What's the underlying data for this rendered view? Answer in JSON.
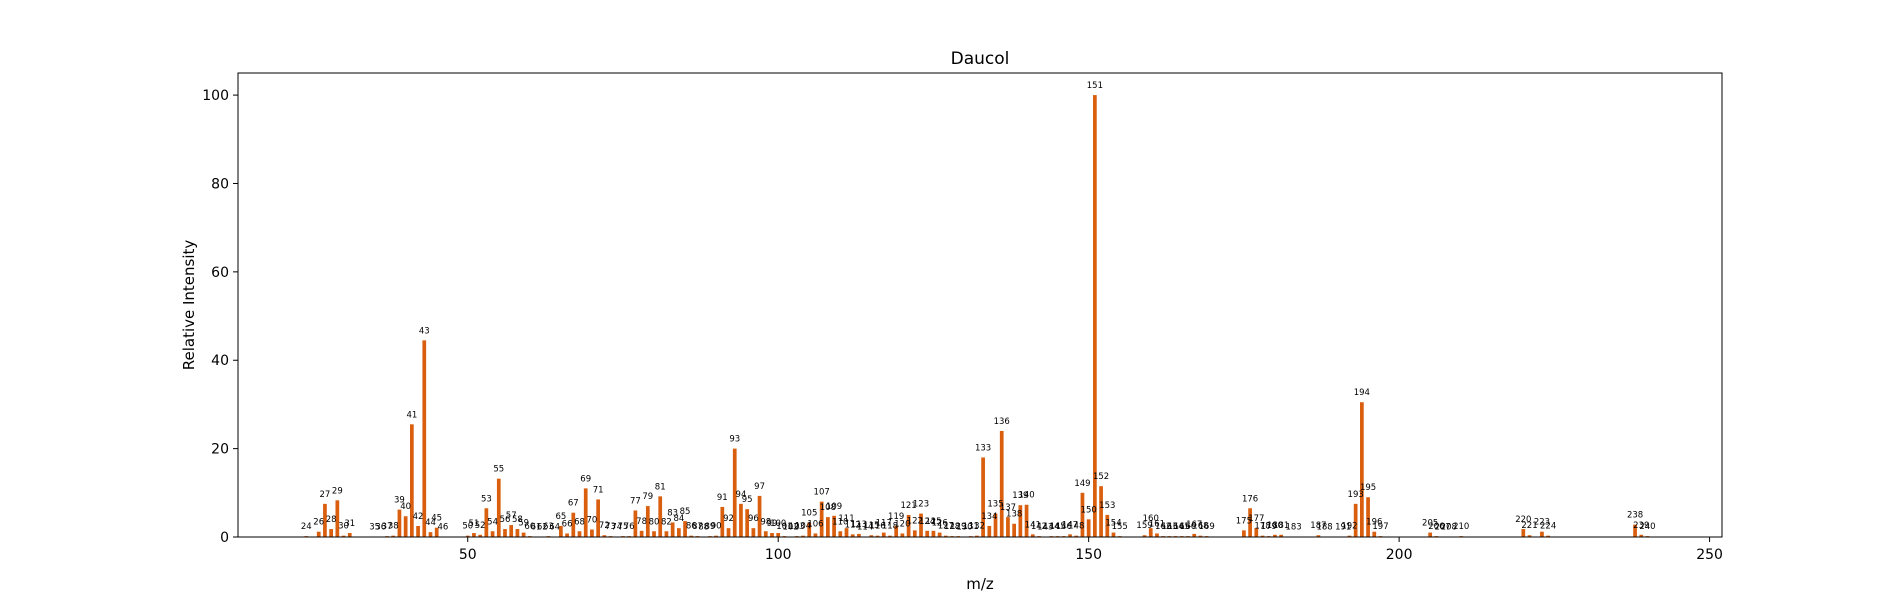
{
  "chart_data": {
    "type": "bar",
    "title": "Daucol",
    "xlabel": "m/z",
    "ylabel": "Relative Intensity",
    "xlim": [
      13,
      252
    ],
    "ylim": [
      0,
      105
    ],
    "xticks": [
      50,
      100,
      150,
      200,
      250
    ],
    "yticks": [
      0,
      20,
      40,
      60,
      80,
      100
    ],
    "bar_color": "#d95f0e",
    "grid": false,
    "peaks": [
      {
        "mz": 24,
        "intensity": 0.2
      },
      {
        "mz": 26,
        "intensity": 1.2
      },
      {
        "mz": 27,
        "intensity": 7.5
      },
      {
        "mz": 28,
        "intensity": 1.8
      },
      {
        "mz": 29,
        "intensity": 8.3
      },
      {
        "mz": 30,
        "intensity": 0.3
      },
      {
        "mz": 31,
        "intensity": 0.9
      },
      {
        "mz": 35,
        "intensity": 0.1
      },
      {
        "mz": 36,
        "intensity": 0.1
      },
      {
        "mz": 37,
        "intensity": 0.2
      },
      {
        "mz": 38,
        "intensity": 0.3
      },
      {
        "mz": 39,
        "intensity": 6.2
      },
      {
        "mz": 40,
        "intensity": 4.7
      },
      {
        "mz": 41,
        "intensity": 25.5
      },
      {
        "mz": 42,
        "intensity": 2.5
      },
      {
        "mz": 43,
        "intensity": 44.5
      },
      {
        "mz": 44,
        "intensity": 1.1
      },
      {
        "mz": 45,
        "intensity": 2.1
      },
      {
        "mz": 46,
        "intensity": 0.1
      },
      {
        "mz": 50,
        "intensity": 0.3
      },
      {
        "mz": 51,
        "intensity": 0.9
      },
      {
        "mz": 52,
        "intensity": 0.5
      },
      {
        "mz": 53,
        "intensity": 6.5
      },
      {
        "mz": 54,
        "intensity": 1.3
      },
      {
        "mz": 55,
        "intensity": 13.2
      },
      {
        "mz": 56,
        "intensity": 1.8
      },
      {
        "mz": 57,
        "intensity": 2.7
      },
      {
        "mz": 58,
        "intensity": 1.8
      },
      {
        "mz": 59,
        "intensity": 1.0
      },
      {
        "mz": 60,
        "intensity": 0.2
      },
      {
        "mz": 61,
        "intensity": 0.1
      },
      {
        "mz": 62,
        "intensity": 0.1
      },
      {
        "mz": 63,
        "intensity": 0.2
      },
      {
        "mz": 64,
        "intensity": 0.1
      },
      {
        "mz": 65,
        "intensity": 2.5
      },
      {
        "mz": 66,
        "intensity": 0.8
      },
      {
        "mz": 67,
        "intensity": 5.5
      },
      {
        "mz": 68,
        "intensity": 1.3
      },
      {
        "mz": 69,
        "intensity": 11.0
      },
      {
        "mz": 70,
        "intensity": 1.7
      },
      {
        "mz": 71,
        "intensity": 8.5
      },
      {
        "mz": 72,
        "intensity": 0.4
      },
      {
        "mz": 73,
        "intensity": 0.2
      },
      {
        "mz": 74,
        "intensity": 0.1
      },
      {
        "mz": 75,
        "intensity": 0.2
      },
      {
        "mz": 76,
        "intensity": 0.2
      },
      {
        "mz": 77,
        "intensity": 6.0
      },
      {
        "mz": 78,
        "intensity": 1.4
      },
      {
        "mz": 79,
        "intensity": 7.0
      },
      {
        "mz": 80,
        "intensity": 1.3
      },
      {
        "mz": 81,
        "intensity": 9.2
      },
      {
        "mz": 82,
        "intensity": 1.3
      },
      {
        "mz": 83,
        "intensity": 3.3
      },
      {
        "mz": 84,
        "intensity": 2.0
      },
      {
        "mz": 85,
        "intensity": 3.6
      },
      {
        "mz": 86,
        "intensity": 0.3
      },
      {
        "mz": 87,
        "intensity": 0.2
      },
      {
        "mz": 88,
        "intensity": 0.1
      },
      {
        "mz": 89,
        "intensity": 0.2
      },
      {
        "mz": 90,
        "intensity": 0.3
      },
      {
        "mz": 91,
        "intensity": 6.8
      },
      {
        "mz": 92,
        "intensity": 2.0
      },
      {
        "mz": 93,
        "intensity": 20.0
      },
      {
        "mz": 94,
        "intensity": 7.5
      },
      {
        "mz": 95,
        "intensity": 6.3
      },
      {
        "mz": 96,
        "intensity": 2.0
      },
      {
        "mz": 97,
        "intensity": 9.3
      },
      {
        "mz": 98,
        "intensity": 1.3
      },
      {
        "mz": 99,
        "intensity": 0.9
      },
      {
        "mz": 100,
        "intensity": 0.9
      },
      {
        "mz": 101,
        "intensity": 0.2
      },
      {
        "mz": 102,
        "intensity": 0.1
      },
      {
        "mz": 103,
        "intensity": 0.2
      },
      {
        "mz": 104,
        "intensity": 0.3
      },
      {
        "mz": 105,
        "intensity": 3.3
      },
      {
        "mz": 106,
        "intensity": 0.8
      },
      {
        "mz": 107,
        "intensity": 8.0
      },
      {
        "mz": 108,
        "intensity": 4.5
      },
      {
        "mz": 109,
        "intensity": 4.8
      },
      {
        "mz": 110,
        "intensity": 1.3
      },
      {
        "mz": 111,
        "intensity": 2.0
      },
      {
        "mz": 112,
        "intensity": 0.6
      },
      {
        "mz": 113,
        "intensity": 0.7
      },
      {
        "mz": 114,
        "intensity": 0.1
      },
      {
        "mz": 115,
        "intensity": 0.4
      },
      {
        "mz": 116,
        "intensity": 0.3
      },
      {
        "mz": 117,
        "intensity": 1.0
      },
      {
        "mz": 118,
        "intensity": 0.3
      },
      {
        "mz": 119,
        "intensity": 2.5
      },
      {
        "mz": 120,
        "intensity": 0.8
      },
      {
        "mz": 121,
        "intensity": 5.0
      },
      {
        "mz": 122,
        "intensity": 1.5
      },
      {
        "mz": 123,
        "intensity": 5.3
      },
      {
        "mz": 124,
        "intensity": 1.4
      },
      {
        "mz": 125,
        "intensity": 1.4
      },
      {
        "mz": 126,
        "intensity": 1.0
      },
      {
        "mz": 127,
        "intensity": 0.3
      },
      {
        "mz": 128,
        "intensity": 0.2
      },
      {
        "mz": 129,
        "intensity": 0.2
      },
      {
        "mz": 130,
        "intensity": 0.1
      },
      {
        "mz": 131,
        "intensity": 0.2
      },
      {
        "mz": 132,
        "intensity": 0.3
      },
      {
        "mz": 133,
        "intensity": 18.0
      },
      {
        "mz": 134,
        "intensity": 2.5
      },
      {
        "mz": 135,
        "intensity": 5.3
      },
      {
        "mz": 136,
        "intensity": 24.0
      },
      {
        "mz": 137,
        "intensity": 4.5
      },
      {
        "mz": 138,
        "intensity": 3.0
      },
      {
        "mz": 139,
        "intensity": 7.2
      },
      {
        "mz": 140,
        "intensity": 7.3
      },
      {
        "mz": 141,
        "intensity": 0.6
      },
      {
        "mz": 142,
        "intensity": 0.2
      },
      {
        "mz": 143,
        "intensity": 0.1
      },
      {
        "mz": 144,
        "intensity": 0.2
      },
      {
        "mz": 145,
        "intensity": 0.2
      },
      {
        "mz": 146,
        "intensity": 0.2
      },
      {
        "mz": 147,
        "intensity": 0.6
      },
      {
        "mz": 148,
        "intensity": 0.3
      },
      {
        "mz": 149,
        "intensity": 10.0
      },
      {
        "mz": 150,
        "intensity": 4.0
      },
      {
        "mz": 151,
        "intensity": 100.0
      },
      {
        "mz": 152,
        "intensity": 11.5
      },
      {
        "mz": 153,
        "intensity": 5.0
      },
      {
        "mz": 154,
        "intensity": 1.0
      },
      {
        "mz": 155,
        "intensity": 0.2
      },
      {
        "mz": 159,
        "intensity": 0.4
      },
      {
        "mz": 160,
        "intensity": 2.0
      },
      {
        "mz": 161,
        "intensity": 0.8
      },
      {
        "mz": 162,
        "intensity": 0.2
      },
      {
        "mz": 163,
        "intensity": 0.2
      },
      {
        "mz": 164,
        "intensity": 0.2
      },
      {
        "mz": 165,
        "intensity": 0.2
      },
      {
        "mz": 166,
        "intensity": 0.2
      },
      {
        "mz": 167,
        "intensity": 0.7
      },
      {
        "mz": 168,
        "intensity": 0.3
      },
      {
        "mz": 169,
        "intensity": 0.2
      },
      {
        "mz": 175,
        "intensity": 1.5
      },
      {
        "mz": 176,
        "intensity": 6.5
      },
      {
        "mz": 177,
        "intensity": 2.0
      },
      {
        "mz": 178,
        "intensity": 0.3
      },
      {
        "mz": 179,
        "intensity": 0.2
      },
      {
        "mz": 180,
        "intensity": 0.5
      },
      {
        "mz": 181,
        "intensity": 0.5
      },
      {
        "mz": 183,
        "intensity": 0.1
      },
      {
        "mz": 187,
        "intensity": 0.4
      },
      {
        "mz": 188,
        "intensity": 0.1
      },
      {
        "mz": 191,
        "intensity": 0.1
      },
      {
        "mz": 192,
        "intensity": 0.3
      },
      {
        "mz": 193,
        "intensity": 7.5
      },
      {
        "mz": 194,
        "intensity": 30.5
      },
      {
        "mz": 195,
        "intensity": 9.0
      },
      {
        "mz": 196,
        "intensity": 1.2
      },
      {
        "mz": 197,
        "intensity": 0.2
      },
      {
        "mz": 205,
        "intensity": 1.0
      },
      {
        "mz": 206,
        "intensity": 0.2
      },
      {
        "mz": 207,
        "intensity": 0.1
      },
      {
        "mz": 208,
        "intensity": 0.1
      },
      {
        "mz": 210,
        "intensity": 0.2
      },
      {
        "mz": 220,
        "intensity": 1.8
      },
      {
        "mz": 221,
        "intensity": 0.4
      },
      {
        "mz": 223,
        "intensity": 1.2
      },
      {
        "mz": 224,
        "intensity": 0.3
      },
      {
        "mz": 238,
        "intensity": 2.8
      },
      {
        "mz": 239,
        "intensity": 0.5
      },
      {
        "mz": 240,
        "intensity": 0.2
      }
    ]
  }
}
